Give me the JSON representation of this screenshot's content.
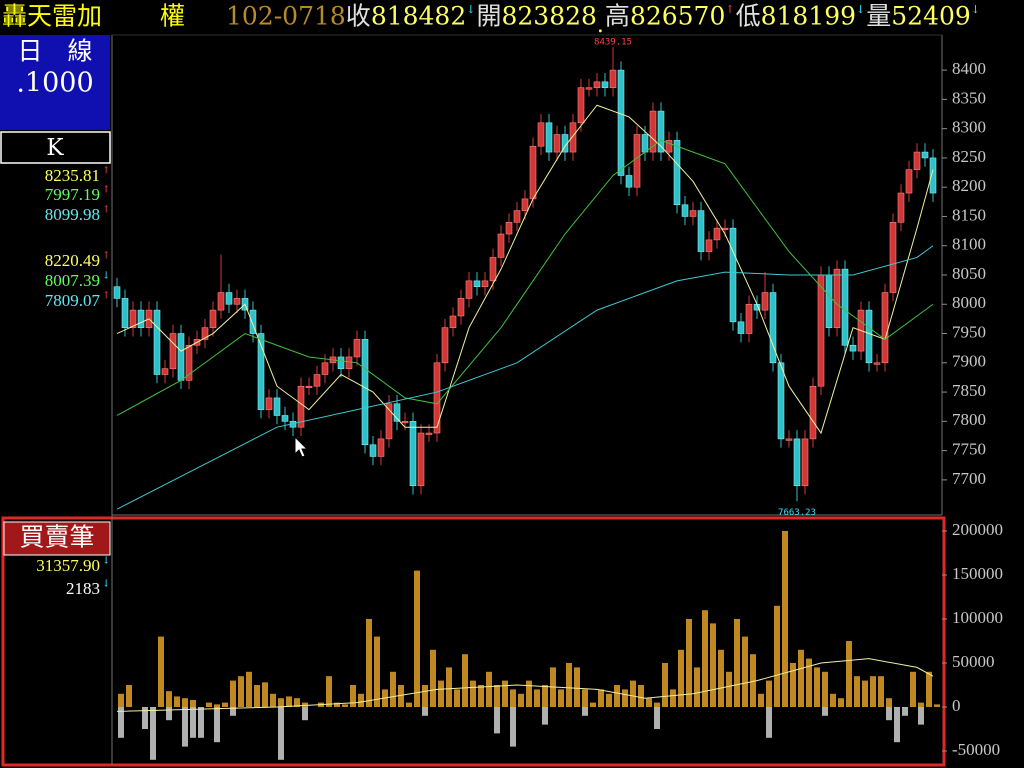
{
  "header": {
    "title": "轟天雷加",
    "market": "權",
    "date": "102-0718",
    "quotes": [
      {
        "label": "收",
        "value": "818482",
        "arrow": "↓"
      },
      {
        "label": "開",
        "value": "823828",
        "arrow": "."
      },
      {
        "label": "高",
        "value": "826570",
        "arrow": "↑"
      },
      {
        "label": "低",
        "value": "818199",
        "arrow": "↓"
      },
      {
        "label": "量",
        "value": "52409",
        "arrow": "↓"
      }
    ]
  },
  "panel": {
    "period": "日　線",
    "unit": ".1000",
    "kind": "K",
    "volume_title": "買賣筆"
  },
  "chart_data": [
    {
      "type": "candlestick",
      "up_color": "#d03838",
      "down_color": "#30c0c8",
      "open": [
        8030,
        8010,
        7960,
        7990,
        7960,
        7990,
        7880,
        7890,
        7950,
        7870,
        7930,
        7940,
        7960,
        7990,
        8020,
        8000,
        8010,
        7990,
        7950,
        7820,
        7840,
        7810,
        7800,
        7790,
        7860,
        7860,
        7880,
        7900,
        7910,
        7890,
        7910,
        7940,
        7760,
        7740,
        7770,
        7830,
        7800,
        7800,
        7690,
        7780,
        7780,
        7900,
        7960,
        7980,
        8010,
        8040,
        8030,
        8040,
        8080,
        8120,
        8140,
        8160,
        8180,
        8270,
        8310,
        8260,
        8290,
        8260,
        8310,
        8370,
        8370,
        8380,
        8370,
        8400,
        8220,
        8200,
        8290,
        8260,
        8330,
        8260,
        8280,
        8170,
        8150,
        8160,
        8090,
        8110,
        8130,
        8130,
        7970,
        7950,
        8000,
        7990,
        8020,
        7900,
        7770,
        7770,
        7690,
        7770,
        7860,
        8050,
        7960,
        8060,
        7930,
        7920,
        7990,
        7900,
        7900,
        8020,
        8140,
        8190,
        8230,
        8260,
        8250
      ],
      "high": [
        8045,
        8025,
        8005,
        8005,
        8005,
        8005,
        7905,
        7965,
        7965,
        7945,
        7955,
        7975,
        8005,
        8085,
        8035,
        8025,
        8025,
        8005,
        7965,
        7855,
        7855,
        7825,
        7815,
        7875,
        7875,
        7895,
        7915,
        7925,
        7925,
        7925,
        7955,
        7955,
        7775,
        7785,
        7845,
        7845,
        7815,
        7815,
        7795,
        7795,
        7915,
        7975,
        7995,
        8025,
        8055,
        8055,
        8055,
        8095,
        8135,
        8155,
        8175,
        8195,
        8285,
        8325,
        8325,
        8305,
        8305,
        8325,
        8385,
        8385,
        8395,
        8395,
        8439.15,
        8415,
        8235,
        8305,
        8305,
        8345,
        8345,
        8295,
        8295,
        8185,
        8175,
        8175,
        8125,
        8145,
        8145,
        8145,
        7985,
        8015,
        8015,
        8055,
        8035,
        7915,
        7785,
        7785,
        7785,
        7875,
        8065,
        8065,
        8075,
        8075,
        7945,
        8005,
        8005,
        7915,
        8035,
        8155,
        8205,
        8245,
        8275,
        8275,
        8265
      ],
      "low": [
        7995,
        7945,
        7945,
        7945,
        7945,
        7865,
        7865,
        7875,
        7855,
        7855,
        7915,
        7925,
        7945,
        7975,
        7985,
        7985,
        7975,
        7935,
        7805,
        7805,
        7795,
        7785,
        7775,
        7775,
        7845,
        7845,
        7865,
        7885,
        7875,
        7875,
        7895,
        7745,
        7725,
        7725,
        7755,
        7785,
        7785,
        7675,
        7675,
        7765,
        7765,
        7885,
        7945,
        7965,
        7995,
        8015,
        8015,
        8025,
        8065,
        8105,
        8125,
        8145,
        8165,
        8255,
        8245,
        8245,
        8245,
        8245,
        8295,
        8355,
        8355,
        8355,
        8355,
        8205,
        8185,
        8185,
        8245,
        8245,
        8245,
        8245,
        8155,
        8135,
        8135,
        8075,
        8075,
        8095,
        8115,
        7955,
        7935,
        7935,
        7975,
        7975,
        7885,
        7755,
        7755,
        7663.23,
        7675,
        7755,
        7845,
        7945,
        7945,
        7915,
        7905,
        7905,
        7885,
        7885,
        7885,
        8005,
        8125,
        8175,
        8215,
        8235,
        8175
      ],
      "close": [
        8010,
        7960,
        7990,
        7960,
        7990,
        7880,
        7890,
        7950,
        7870,
        7930,
        7940,
        7960,
        7990,
        8020,
        8000,
        8010,
        7990,
        7950,
        7820,
        7840,
        7810,
        7800,
        7790,
        7860,
        7860,
        7880,
        7900,
        7910,
        7890,
        7910,
        7940,
        7760,
        7740,
        7770,
        7830,
        7800,
        7800,
        7690,
        7780,
        7780,
        7900,
        7960,
        7980,
        8010,
        8040,
        8030,
        8040,
        8080,
        8120,
        8140,
        8160,
        8180,
        8270,
        8310,
        8260,
        8290,
        8260,
        8310,
        8370,
        8370,
        8380,
        8370,
        8400,
        8220,
        8200,
        8290,
        8260,
        8330,
        8260,
        8280,
        8170,
        8150,
        8160,
        8090,
        8110,
        8130,
        8130,
        7970,
        7950,
        8000,
        7990,
        8020,
        7900,
        7770,
        7770,
        7690,
        7770,
        7860,
        8050,
        7960,
        8060,
        7930,
        7920,
        7990,
        7900,
        7900,
        8020,
        8140,
        8190,
        8230,
        8260,
        8250,
        8190
      ],
      "lines": [
        {
          "color": "#f0f0a0",
          "x": [
            0,
            4,
            8,
            12,
            16,
            20,
            24,
            28,
            32,
            36,
            40,
            44,
            48,
            52,
            56,
            60,
            64,
            68,
            72,
            76,
            80,
            84,
            88,
            92,
            96,
            100,
            102
          ],
          "values": [
            7950,
            7975,
            7920,
            7950,
            8000,
            7860,
            7820,
            7880,
            7850,
            7790,
            7790,
            7960,
            8060,
            8180,
            8270,
            8340,
            8320,
            8270,
            8210,
            8120,
            8000,
            7860,
            7780,
            7960,
            7940,
            8130,
            8230
          ]
        },
        {
          "color": "#40c040",
          "x": [
            0,
            8,
            16,
            24,
            30,
            36,
            40,
            48,
            56,
            62,
            68,
            76,
            84,
            90,
            96,
            100,
            102
          ],
          "values": [
            7810,
            7870,
            7950,
            7910,
            7900,
            7840,
            7830,
            7960,
            8120,
            8220,
            8280,
            8240,
            8090,
            8000,
            7940,
            7980,
            8000
          ]
        },
        {
          "color": "#40c8d0",
          "x": [
            0,
            10,
            20,
            30,
            40,
            50,
            60,
            70,
            76,
            84,
            92,
            100,
            102
          ],
          "values": [
            7650,
            7720,
            7790,
            7820,
            7850,
            7900,
            7990,
            8040,
            8055,
            8050,
            8050,
            8080,
            8100
          ]
        }
      ],
      "readouts": [
        {
          "text": "8235.81",
          "arrow": "↑",
          "color": "#ffff60",
          "arrow_color": "#ff4040"
        },
        {
          "text": "7997.19",
          "arrow": "↑",
          "color": "#60ff60",
          "arrow_color": "#ff4040"
        },
        {
          "text": "8099.98",
          "arrow": "↑",
          "color": "#60e8f0",
          "arrow_color": "#ff4040"
        },
        {
          "text": "8220.49",
          "arrow": "↑",
          "color": "#ffff60",
          "arrow_color": "#ff4040"
        },
        {
          "text": "8007.39",
          "arrow": "↓",
          "color": "#60ff60",
          "arrow_color": "#40e0ff"
        },
        {
          "text": "7809.07",
          "arrow": "↑",
          "color": "#60e8f0",
          "arrow_color": "#ff4040"
        }
      ],
      "ylim": [
        7640,
        8460
      ],
      "yticks": [
        7700,
        7750,
        7800,
        7850,
        7900,
        7950,
        8000,
        8050,
        8100,
        8150,
        8200,
        8250,
        8300,
        8350,
        8400
      ]
    },
    {
      "type": "bar",
      "series": [
        {
          "color": "#c08820",
          "values": [
            15000,
            25000,
            0,
            0,
            0,
            80000,
            18000,
            12000,
            10000,
            8000,
            0,
            5000,
            3000,
            5000,
            30000,
            35000,
            40000,
            25000,
            28000,
            15000,
            10000,
            12000,
            10000,
            5000,
            0,
            5000,
            35000,
            5000,
            3000,
            25000,
            15000,
            100000,
            80000,
            20000,
            40000,
            25000,
            5000,
            155000,
            25000,
            65000,
            30000,
            45000,
            20000,
            60000,
            30000,
            25000,
            40000,
            25000,
            30000,
            20000,
            15000,
            30000,
            20000,
            25000,
            45000,
            20000,
            50000,
            45000,
            20000,
            5000,
            20000,
            15000,
            25000,
            20000,
            30000,
            25000,
            10000,
            5000,
            50000,
            20000,
            65000,
            100000,
            45000,
            110000,
            95000,
            65000,
            40000,
            100000,
            80000,
            60000,
            15000,
            30000,
            115000,
            200000,
            50000,
            65000,
            55000,
            45000,
            40000,
            15000,
            10000,
            75000,
            35000,
            30000,
            35000,
            35000,
            10000,
            0,
            0,
            40000,
            5000,
            40000,
            3000
          ]
        },
        {
          "color": "#b0b0b0",
          "values": [
            -35000,
            0,
            0,
            -25000,
            -60000,
            0,
            -15000,
            0,
            -45000,
            -35000,
            -35000,
            0,
            -40000,
            0,
            -10000,
            0,
            0,
            0,
            0,
            0,
            -60000,
            0,
            0,
            -15000,
            0,
            0,
            0,
            0,
            0,
            0,
            0,
            0,
            0,
            0,
            0,
            0,
            0,
            0,
            -10000,
            0,
            0,
            0,
            0,
            0,
            0,
            0,
            0,
            -30000,
            0,
            -45000,
            0,
            0,
            0,
            -20000,
            0,
            0,
            0,
            0,
            -10000,
            0,
            0,
            0,
            0,
            0,
            0,
            0,
            0,
            -25000,
            0,
            0,
            0,
            0,
            0,
            0,
            0,
            0,
            0,
            0,
            0,
            0,
            0,
            -35000,
            0,
            0,
            0,
            0,
            0,
            0,
            -10000,
            0,
            0,
            0,
            0,
            0,
            0,
            0,
            -15000,
            -40000,
            -10000,
            0,
            -20000,
            0,
            0
          ]
        }
      ],
      "lines": [
        {
          "color": "#f0f0a0",
          "x": [
            0,
            20,
            30,
            40,
            50,
            60,
            66,
            72,
            80,
            88,
            94,
            100,
            102
          ],
          "values": [
            -5000,
            0,
            5000,
            20000,
            25000,
            20000,
            10000,
            15000,
            30000,
            50000,
            55000,
            45000,
            35000
          ]
        }
      ],
      "readouts": [
        {
          "text": "31357.90",
          "arrow": "↓",
          "color": "#ffff60",
          "arrow_color": "#40e0ff"
        },
        {
          "text": "2183",
          "arrow": "↓",
          "color": "#ffffff",
          "arrow_color": "#40e0ff"
        }
      ],
      "ylim": [
        -62500,
        212500
      ],
      "yticks": [
        -50000,
        0,
        50000,
        100000,
        150000,
        200000
      ]
    }
  ]
}
